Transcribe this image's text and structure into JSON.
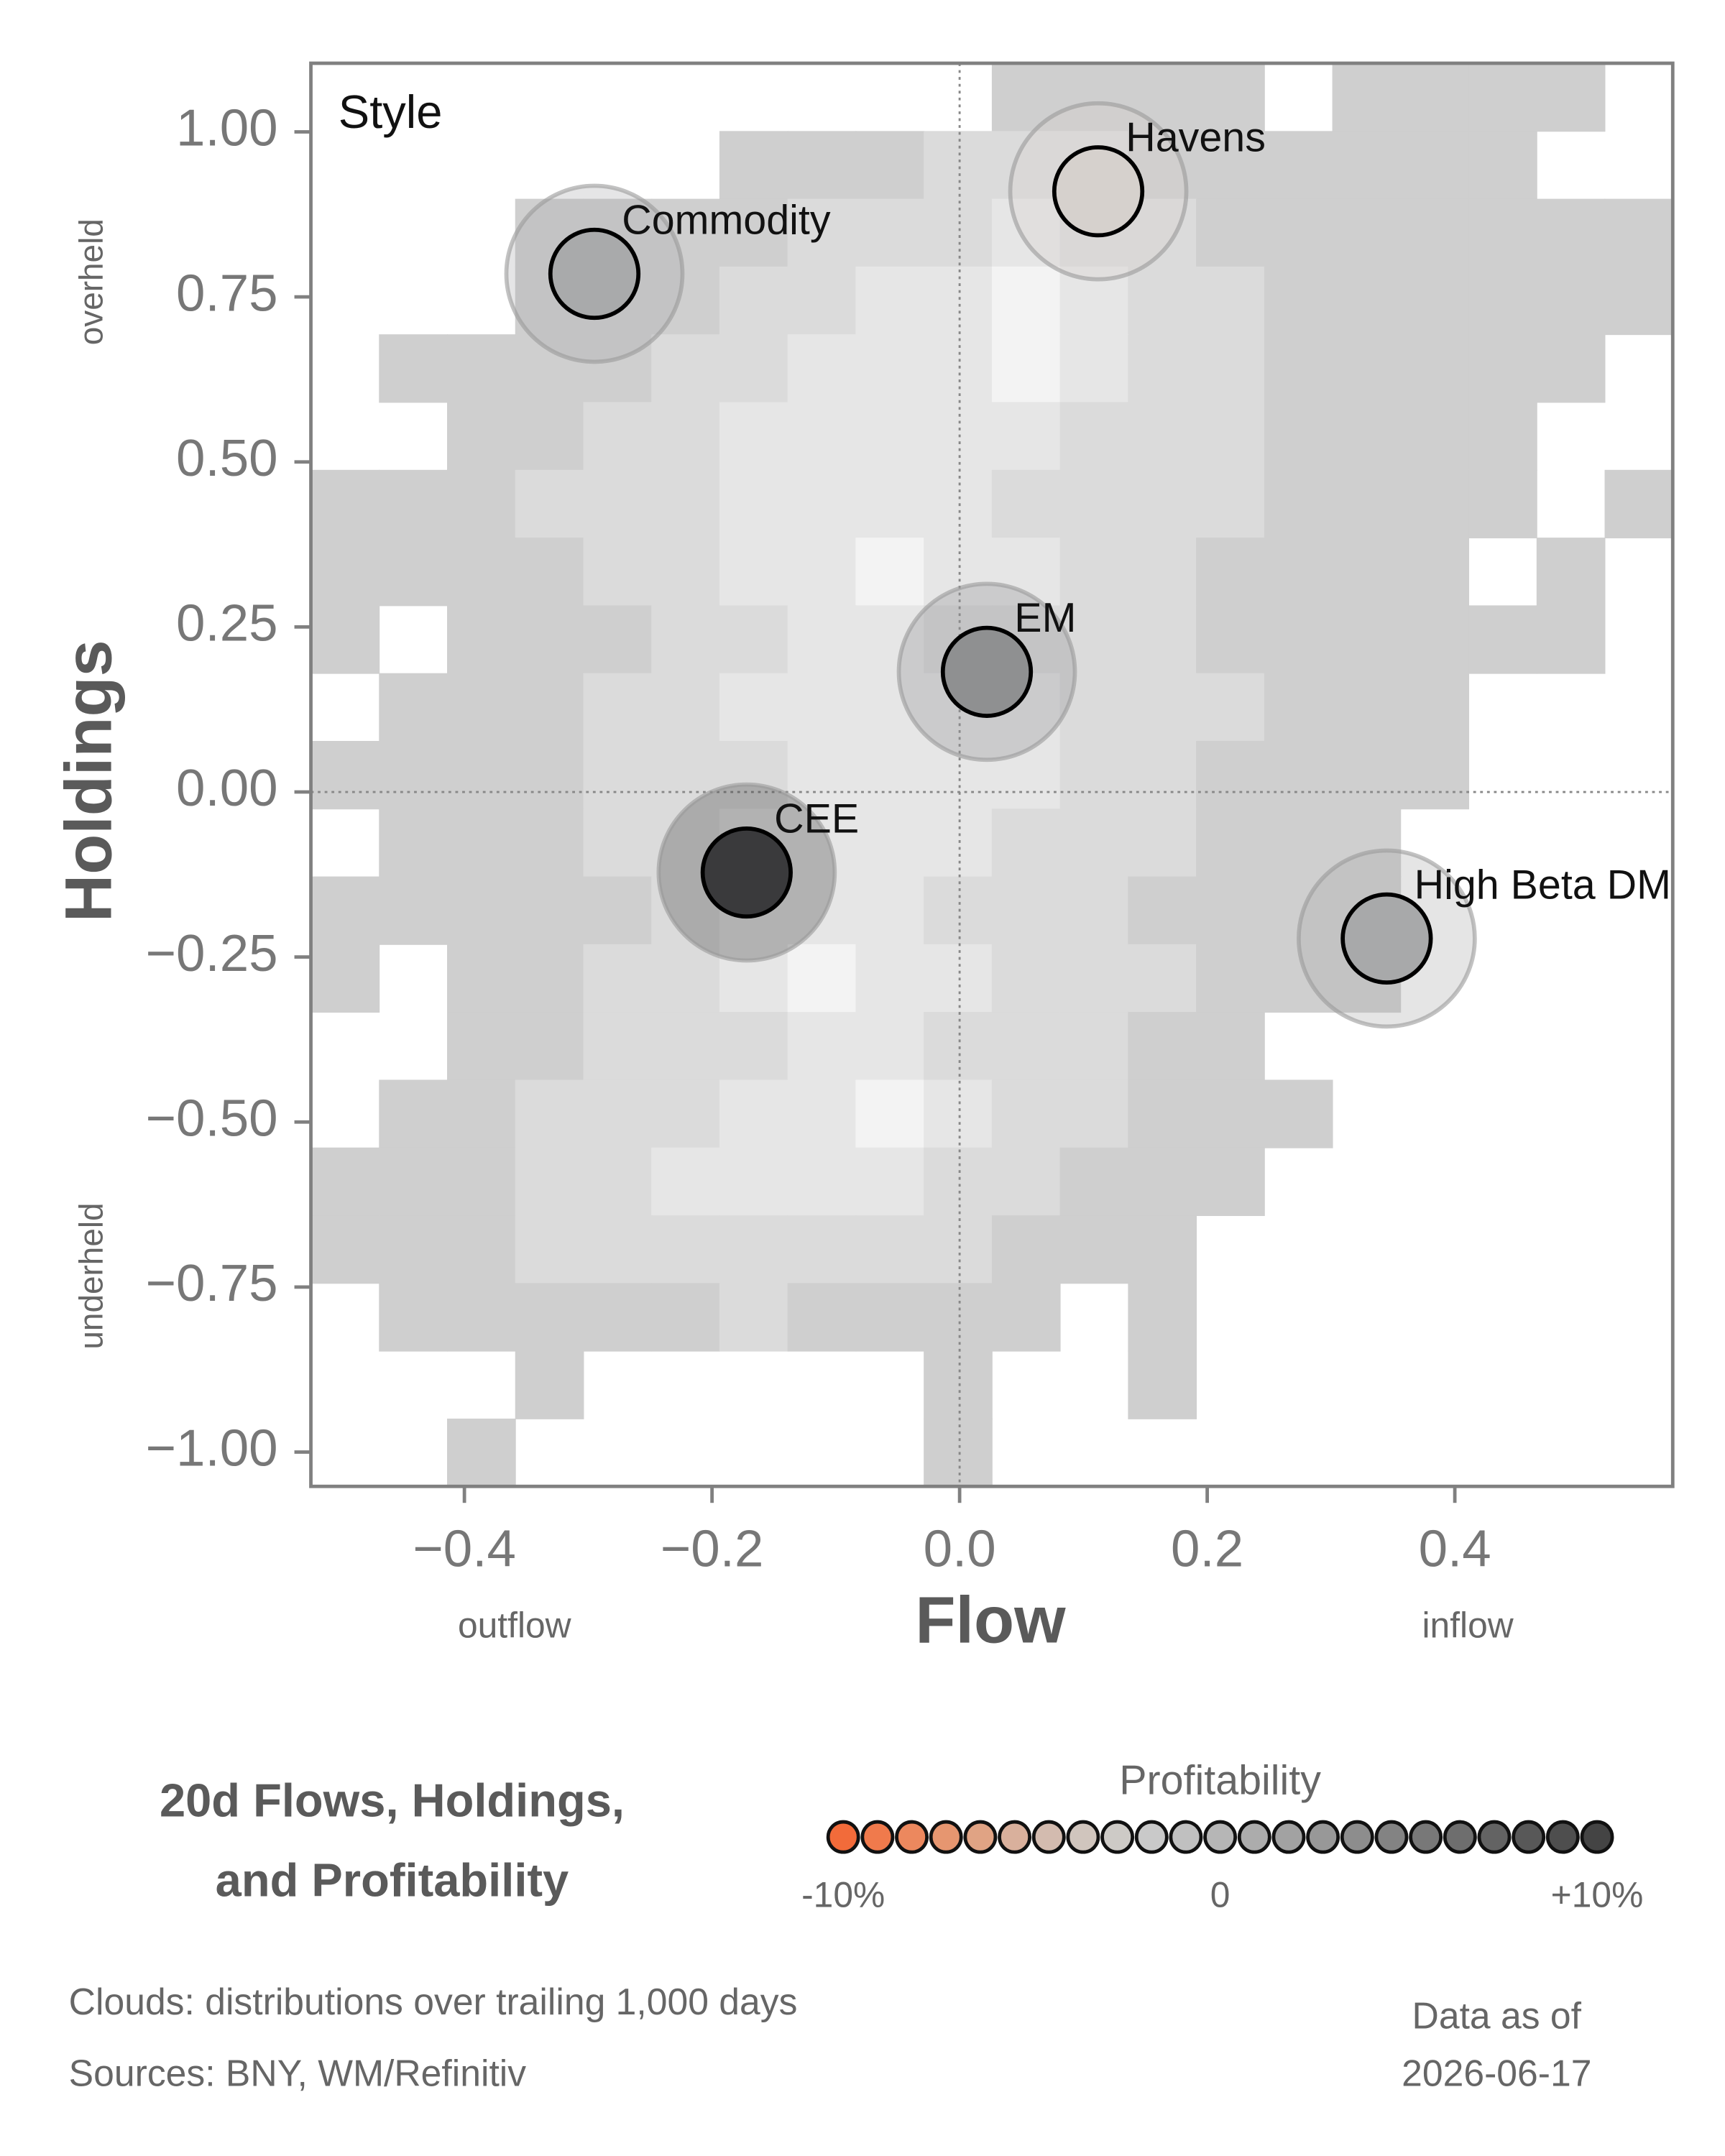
{
  "chart_data": {
    "type": "scatter",
    "annotation": "Style",
    "xlabel": "Flow",
    "ylabel": "Holdings",
    "x_side_labels": [
      "outflow",
      "inflow"
    ],
    "y_side_labels": [
      "overheld",
      "underheld"
    ],
    "xlim": [
      -0.524,
      0.576
    ],
    "ylim": [
      -1.052,
      1.104
    ],
    "xticks": [
      {
        "value": -0.4,
        "label": "−0.4"
      },
      {
        "value": -0.2,
        "label": "−0.2"
      },
      {
        "value": 0,
        "label": "0.0"
      },
      {
        "value": 0.2,
        "label": "0.2"
      },
      {
        "value": 0.4,
        "label": "0.4"
      }
    ],
    "yticks": [
      {
        "value": 1,
        "label": "1.00"
      },
      {
        "value": 0.75,
        "label": "0.75"
      },
      {
        "value": 0.5,
        "label": "0.50"
      },
      {
        "value": 0.25,
        "label": "0.25"
      },
      {
        "value": 0,
        "label": "0.00"
      },
      {
        "value": -0.25,
        "label": "−0.25"
      },
      {
        "value": -0.5,
        "label": "−0.50"
      },
      {
        "value": -0.75,
        "label": "−0.75"
      },
      {
        "value": -1,
        "label": "−1.00"
      }
    ],
    "series": [
      {
        "name": "Commodity",
        "color": "#a9aaab",
        "x": [
          -0.295
        ],
        "values": [
          0.785
        ]
      },
      {
        "name": "Havens",
        "color": "#d6d1cd",
        "x": [
          0.112
        ],
        "values": [
          0.91
        ]
      },
      {
        "name": "EM",
        "color": "#8f9091",
        "x": [
          0.022
        ],
        "values": [
          0.182
        ]
      },
      {
        "name": "CEE",
        "color": "#3a3a3c",
        "x": [
          -0.172
        ],
        "values": [
          -0.122
        ]
      },
      {
        "name": "High Beta DM",
        "color": "#a8a9aa",
        "x": [
          0.345
        ],
        "values": [
          -0.222
        ]
      }
    ],
    "density": [
      [
        0,
        0,
        0,
        0,
        0,
        0,
        0,
        0,
        0,
        0,
        1,
        1,
        1,
        1,
        0,
        1,
        1,
        1,
        1,
        0
      ],
      [
        0,
        0,
        0,
        0,
        0,
        0,
        1,
        1,
        1,
        2,
        2,
        2,
        1,
        1,
        1,
        1,
        1,
        1,
        0,
        0
      ],
      [
        0,
        0,
        0,
        1,
        1,
        1,
        1,
        2,
        2,
        2,
        3,
        2,
        2,
        1,
        1,
        1,
        1,
        1,
        1,
        1
      ],
      [
        0,
        0,
        0,
        1,
        1,
        1,
        2,
        2,
        3,
        3,
        4,
        3,
        2,
        2,
        1,
        1,
        1,
        1,
        1,
        1
      ],
      [
        0,
        1,
        1,
        1,
        1,
        2,
        2,
        3,
        3,
        3,
        4,
        3,
        2,
        2,
        1,
        1,
        1,
        1,
        1,
        0
      ],
      [
        0,
        0,
        1,
        1,
        2,
        2,
        3,
        3,
        3,
        3,
        3,
        2,
        2,
        2,
        1,
        1,
        1,
        1,
        0,
        0
      ],
      [
        1,
        1,
        1,
        2,
        2,
        2,
        3,
        3,
        3,
        3,
        2,
        2,
        2,
        2,
        1,
        1,
        1,
        1,
        0,
        1
      ],
      [
        1,
        1,
        1,
        1,
        2,
        2,
        3,
        3,
        4,
        3,
        3,
        2,
        2,
        1,
        1,
        1,
        1,
        0,
        1,
        0
      ],
      [
        1,
        0,
        1,
        1,
        1,
        2,
        2,
        3,
        3,
        2,
        2,
        2,
        2,
        1,
        1,
        1,
        1,
        1,
        1,
        0
      ],
      [
        0,
        1,
        1,
        1,
        2,
        2,
        3,
        3,
        3,
        3,
        3,
        2,
        2,
        2,
        1,
        1,
        1,
        0,
        0,
        0
      ],
      [
        1,
        1,
        1,
        1,
        2,
        2,
        2,
        3,
        3,
        3,
        3,
        2,
        2,
        1,
        1,
        1,
        1,
        0,
        0,
        0
      ],
      [
        0,
        1,
        1,
        1,
        2,
        2,
        3,
        3,
        3,
        3,
        2,
        2,
        2,
        1,
        1,
        1,
        0,
        0,
        0,
        0
      ],
      [
        1,
        1,
        1,
        1,
        1,
        2,
        3,
        3,
        3,
        2,
        2,
        2,
        1,
        1,
        1,
        1,
        0,
        0,
        0,
        0
      ],
      [
        1,
        0,
        1,
        1,
        2,
        2,
        3,
        4,
        3,
        3,
        2,
        2,
        2,
        1,
        1,
        1,
        0,
        0,
        0,
        0
      ],
      [
        0,
        0,
        1,
        1,
        2,
        2,
        2,
        3,
        3,
        2,
        2,
        2,
        1,
        1,
        0,
        0,
        0,
        0,
        0,
        0
      ],
      [
        0,
        1,
        1,
        2,
        2,
        2,
        3,
        3,
        4,
        3,
        2,
        2,
        1,
        1,
        1,
        0,
        0,
        0,
        0,
        0
      ],
      [
        1,
        1,
        1,
        2,
        2,
        3,
        3,
        3,
        3,
        2,
        2,
        1,
        1,
        1,
        0,
        0,
        0,
        0,
        0,
        0
      ],
      [
        1,
        1,
        1,
        2,
        2,
        2,
        2,
        2,
        2,
        2,
        1,
        1,
        1,
        0,
        0,
        0,
        0,
        0,
        0,
        0
      ],
      [
        0,
        1,
        1,
        1,
        1,
        1,
        2,
        1,
        1,
        1,
        1,
        0,
        1,
        0,
        0,
        0,
        0,
        0,
        0,
        0
      ],
      [
        0,
        0,
        0,
        1,
        0,
        0,
        0,
        0,
        0,
        1,
        0,
        0,
        1,
        0,
        0,
        0,
        0,
        0,
        0,
        0
      ],
      [
        0,
        0,
        1,
        0,
        0,
        0,
        0,
        0,
        0,
        1,
        0,
        0,
        0,
        0,
        0,
        0,
        0,
        0,
        0,
        0
      ]
    ],
    "density_colors": [
      "none",
      "#cfcfcf",
      "#dbdbdb",
      "#e6e6e6",
      "#f3f3f3"
    ],
    "title": [
      "20d Flows, Holdings,",
      "and Profitability"
    ],
    "legend": {
      "title": "Profitability",
      "labels": [
        "-10%",
        "0",
        "+10%"
      ],
      "colors": [
        "#f26b3a",
        "#f07a4c",
        "#ec885e",
        "#e69670",
        "#e0a384",
        "#d9b09c",
        "#d3bbaf",
        "#d0c5bd",
        "#cdcac6",
        "#c9c9c9",
        "#c0c0c0",
        "#b6b6b6",
        "#acacac",
        "#a2a2a2",
        "#989898",
        "#8d8d8d",
        "#838383",
        "#787878",
        "#6e6e6e",
        "#636363",
        "#585858",
        "#4e4e4e",
        "#444444"
      ]
    },
    "notes": [
      "Clouds:  distributions over trailing 1,000 days",
      "Sources:  BNY, WM/Refinitiv"
    ],
    "date_label": [
      "Data as of",
      "2026-06-17"
    ]
  }
}
